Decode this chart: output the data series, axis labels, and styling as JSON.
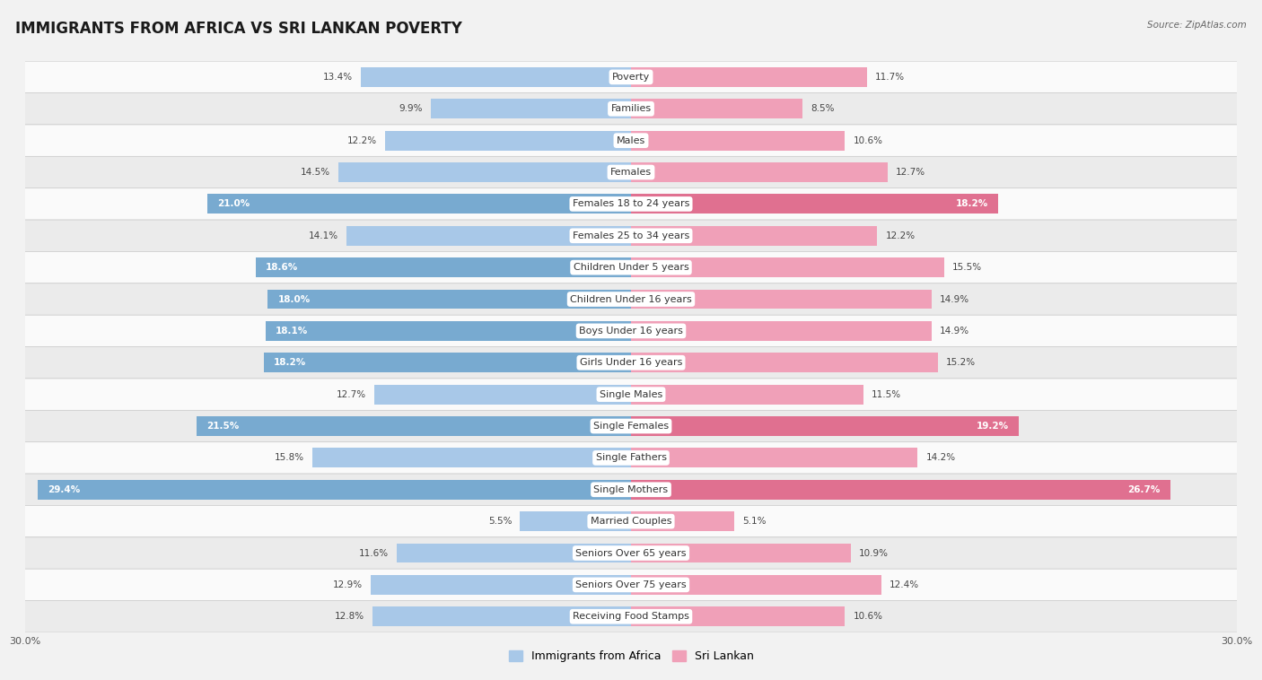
{
  "title": "IMMIGRANTS FROM AFRICA VS SRI LANKAN POVERTY",
  "source": "Source: ZipAtlas.com",
  "categories": [
    "Poverty",
    "Families",
    "Males",
    "Females",
    "Females 18 to 24 years",
    "Females 25 to 34 years",
    "Children Under 5 years",
    "Children Under 16 years",
    "Boys Under 16 years",
    "Girls Under 16 years",
    "Single Males",
    "Single Females",
    "Single Fathers",
    "Single Mothers",
    "Married Couples",
    "Seniors Over 65 years",
    "Seniors Over 75 years",
    "Receiving Food Stamps"
  ],
  "africa_values": [
    13.4,
    9.9,
    12.2,
    14.5,
    21.0,
    14.1,
    18.6,
    18.0,
    18.1,
    18.2,
    12.7,
    21.5,
    15.8,
    29.4,
    5.5,
    11.6,
    12.9,
    12.8
  ],
  "srilankan_values": [
    11.7,
    8.5,
    10.6,
    12.7,
    18.2,
    12.2,
    15.5,
    14.9,
    14.9,
    15.2,
    11.5,
    19.2,
    14.2,
    26.7,
    5.1,
    10.9,
    12.4,
    10.6
  ],
  "africa_color_normal": "#a8c8e8",
  "africa_color_highlight": "#78aad0",
  "srilankan_color_normal": "#f0a0b8",
  "srilankan_color_highlight": "#e07090",
  "highlight_threshold": 18.0,
  "background_color": "#f2f2f2",
  "row_color_light": "#fafafa",
  "row_color_dark": "#ebebeb",
  "xlim": 30.0,
  "bar_height": 0.62,
  "title_fontsize": 12,
  "label_fontsize": 8,
  "value_fontsize": 7.5,
  "legend_fontsize": 9,
  "axis_tick_fontsize": 8
}
